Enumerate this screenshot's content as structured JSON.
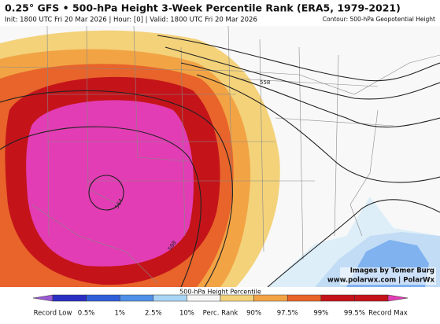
{
  "header": {
    "title": "0.25° GFS • 500-hPa Height 3-Week Percentile Rank (ERA5, 1979-2021)",
    "subtitle": "Init: 1800 UTC Fri 20 Mar 2026 | Hour: [0] | Valid: 1800 UTC Fri 20 Mar 2026",
    "contour_note": "Contour: 500-hPa Geopotential Height"
  },
  "map": {
    "contour_labels": [
      "558",
      "564",
      "588"
    ],
    "credit": "Images by Tomer Burg",
    "website": "www.polarwx.com | PolarWx"
  },
  "colorbar": {
    "title": "500-hPa Height Percentile",
    "labels": [
      "Record Low",
      "0.5%",
      "1%",
      "2.5%",
      "10%",
      "Perc. Rank",
      "90%",
      "97.5%",
      "99%",
      "99.5%",
      "Record Max"
    ],
    "colors": [
      "#9b59d6",
      "#2a2fc4",
      "#2f5fd9",
      "#4f8fe8",
      "#a8d4f5",
      "#f7f7f7",
      "#f3d27a",
      "#f2a445",
      "#e8642a",
      "#c4141a",
      "#e23db4"
    ]
  }
}
